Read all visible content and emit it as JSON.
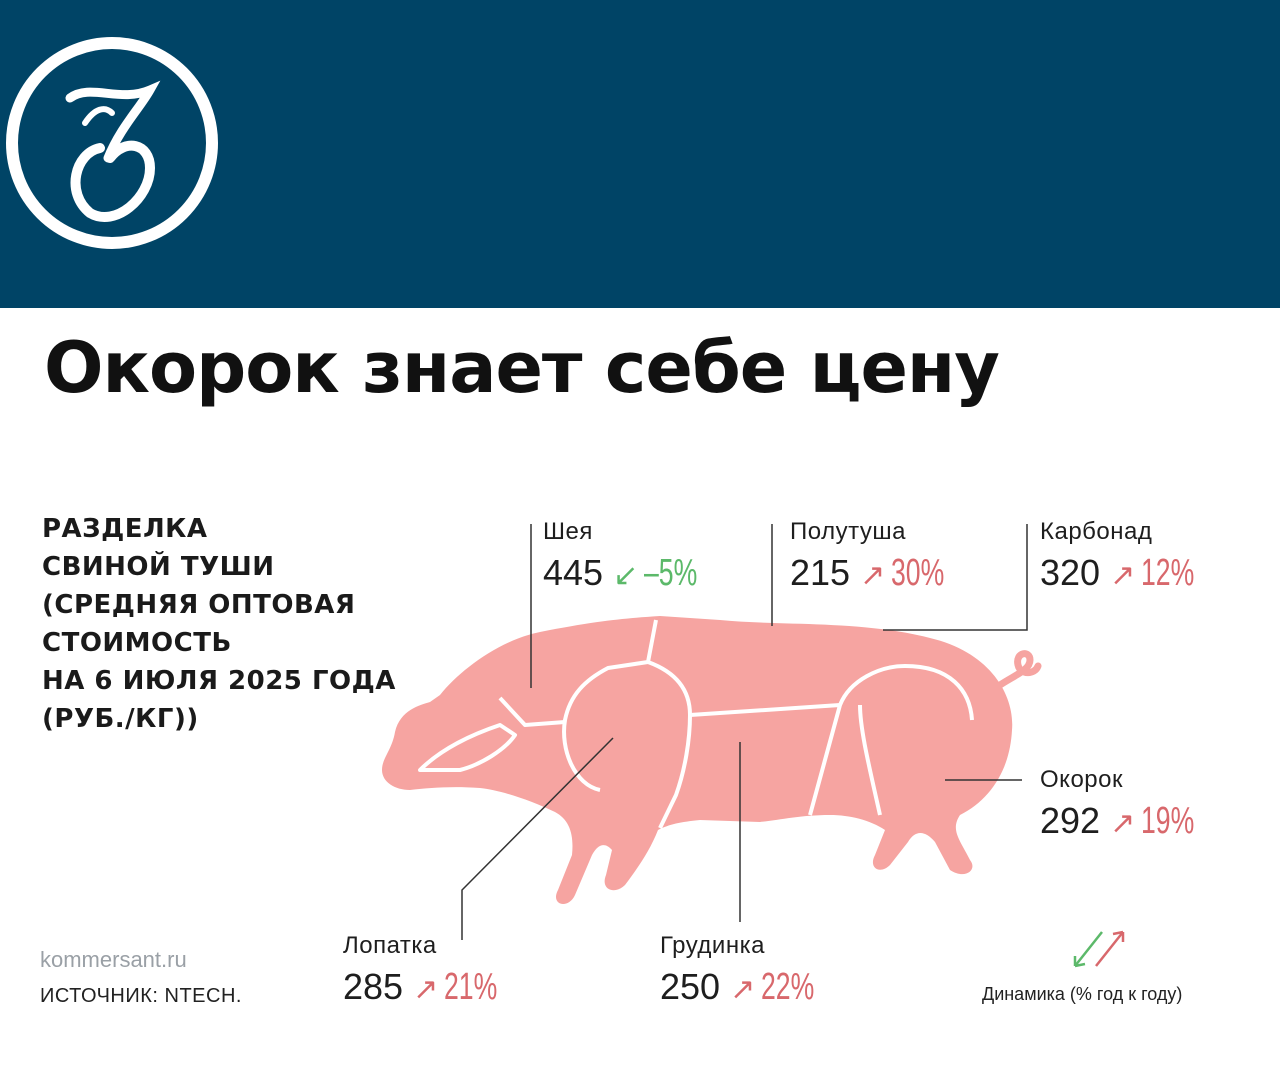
{
  "header": {
    "background": "#004466",
    "logo": "kommersant-monogram"
  },
  "headline": "Окорок знает себе цену",
  "chart_data": {
    "type": "diagram",
    "subtitle_lines": [
      "РАЗДЕЛКА",
      "СВИНОЙ ТУШИ",
      "(СРЕДНЯЯ ОПТОВАЯ",
      "СТОИМОСТЬ",
      "НА 6 ИЮЛЯ 2025 ГОДА",
      "(РУБ./КГ))"
    ],
    "unit": "руб./кг",
    "cuts": [
      {
        "name": "Шея",
        "price": "445",
        "change": "–5%",
        "direction": "down"
      },
      {
        "name": "Полутуша",
        "price": "215",
        "change": "30%",
        "direction": "up"
      },
      {
        "name": "Карбонад",
        "price": "320",
        "change": "12%",
        "direction": "up"
      },
      {
        "name": "Окорок",
        "price": "292",
        "change": "19%",
        "direction": "up"
      },
      {
        "name": "Лопатка",
        "price": "285",
        "change": "21%",
        "direction": "up"
      },
      {
        "name": "Грудинка",
        "price": "250",
        "change": "22%",
        "direction": "up"
      }
    ],
    "legend": "Динамика (% год к году)",
    "colors": {
      "pig": "#f6a4a1",
      "up": "#d8686c",
      "down": "#5cb96a",
      "leader": "#333333"
    }
  },
  "footer": {
    "site": "kommersant.ru",
    "source": "ИСТОЧНИК: NTECH."
  },
  "icons": {
    "up": "↗",
    "down": "↙"
  }
}
